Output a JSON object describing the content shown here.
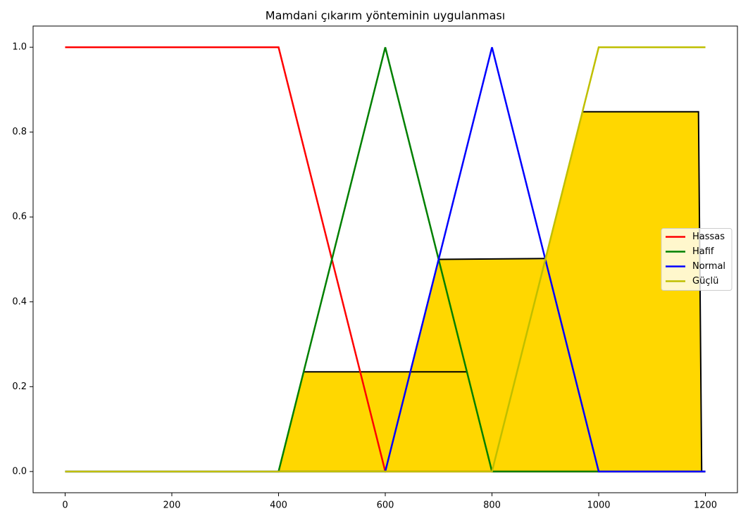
{
  "chart_data": {
    "type": "line",
    "title": "Mamdani çıkarım yönteminin uygulanması",
    "xlim": [
      -60,
      1260
    ],
    "ylim": [
      -0.05,
      1.05
    ],
    "xticks": [
      0,
      200,
      400,
      600,
      800,
      1000,
      1200
    ],
    "yticks": [
      {
        "value": 0,
        "label": "0.0"
      },
      0.2,
      0.4,
      0.6,
      0.8,
      {
        "value": 1,
        "label": "1.0"
      }
    ],
    "legend": "center right",
    "series": [
      {
        "name": "Hassas",
        "color": "#ff0000",
        "x": [
          0,
          400,
          600,
          1200
        ],
        "values": [
          1,
          1,
          0,
          0
        ]
      },
      {
        "name": "Hafif",
        "color": "#008000",
        "x": [
          0,
          400,
          600,
          800,
          1200
        ],
        "values": [
          0,
          0,
          1,
          0,
          0
        ]
      },
      {
        "name": "Normal",
        "color": "#0000ff",
        "x": [
          0,
          600,
          800,
          1000,
          1200
        ],
        "values": [
          0,
          0,
          1,
          0,
          0
        ]
      },
      {
        "name": "Güçlü",
        "color": "#bfbf00",
        "x": [
          0,
          800,
          1000,
          1200
        ],
        "values": [
          0,
          0,
          1,
          1
        ]
      }
    ],
    "aggregate_fill": {
      "color": "#ffd700",
      "x": [
        400,
        447,
        647,
        700,
        900,
        970,
        1187,
        1193
      ],
      "values": [
        0,
        0.235,
        0.235,
        0.5,
        0.5,
        0.848,
        0.848,
        0
      ]
    },
    "clip_lines": [
      {
        "color": "#000000",
        "x": [
          447,
          753
        ],
        "values": [
          0.235,
          0.235
        ]
      },
      {
        "color": "#000000",
        "x": [
          700,
          901
        ],
        "values": [
          0.5,
          0.502
        ]
      },
      {
        "color": "#000000",
        "x": [
          970,
          1187,
          1193
        ],
        "values": [
          0.848,
          0.848,
          0
        ]
      }
    ]
  }
}
